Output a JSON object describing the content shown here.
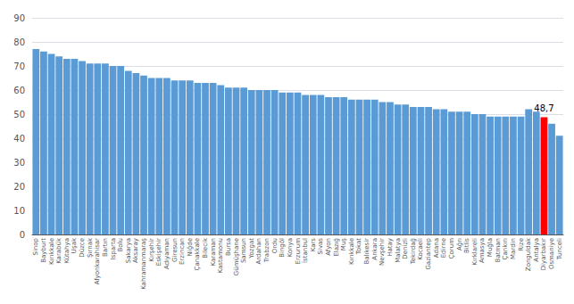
{
  "chart_data": {
    "type": "bar",
    "categories": [
      "Sinop",
      "Bayburt",
      "Kırıkkale",
      "Karabük",
      "Kütahya",
      "Uşak",
      "Düzce",
      "Şırnak",
      "Afyonkarahisar",
      "Bartın",
      "Isparta",
      "Bolu",
      "Sakarya",
      "Aksaray",
      "Kahramanmaraş",
      "Kırşehir",
      "Eskişehir",
      "Adıyaman",
      "Giresun",
      "Erzincan",
      "Niğde",
      "Çanakkale",
      "Bilecik",
      "Karaman",
      "Kastamonu",
      "Bursa",
      "Gümüşhane",
      "Samsun",
      "Yozgat",
      "Ardahan",
      "Trabzon",
      "Ordu",
      "Bingöl",
      "Konya",
      "Erzurum",
      "İstanbul",
      "Kars",
      "Sivas",
      "Afyon",
      "Elazığ",
      "Muş",
      "Kırıkkale",
      "Tokat",
      "Balıkesir",
      "Ankara",
      "Nevşehir",
      "Hatay",
      "Malatya",
      "Denizli",
      "Tekirdağ",
      "Kocaeli",
      "Gaziantep",
      "Adana",
      "Edirne",
      "Çorum",
      "Ağrı",
      "Bitlis",
      "Kırklareli",
      "Amasya",
      "Muğla",
      "Batman",
      "Çankırı",
      "Mardin",
      "Rize",
      "Zonguldak",
      "Antalya",
      "Diyarbakır",
      "Osmaniye",
      "Tunceli"
    ],
    "values": [
      77,
      76,
      75,
      74,
      73,
      73,
      72,
      71,
      71,
      71,
      70,
      70,
      68,
      67,
      66,
      65,
      65,
      65,
      64,
      64,
      64,
      63,
      63,
      63,
      62,
      61,
      61,
      61,
      60,
      60,
      60,
      60,
      59,
      59,
      59,
      58,
      58,
      58,
      57,
      57,
      57,
      56,
      56,
      56,
      56,
      55,
      55,
      54,
      54,
      53,
      53,
      53,
      52,
      52,
      51,
      51,
      51,
      50,
      50,
      49,
      49,
      49,
      49,
      49,
      52,
      51,
      48.7,
      46,
      41
    ],
    "colors": [
      "#5B9BD5",
      "#5B9BD5",
      "#5B9BD5",
      "#5B9BD5",
      "#5B9BD5",
      "#5B9BD5",
      "#5B9BD5",
      "#5B9BD5",
      "#5B9BD5",
      "#5B9BD5",
      "#5B9BD5",
      "#5B9BD5",
      "#5B9BD5",
      "#5B9BD5",
      "#5B9BD5",
      "#5B9BD5",
      "#5B9BD5",
      "#5B9BD5",
      "#5B9BD5",
      "#5B9BD5",
      "#5B9BD5",
      "#5B9BD5",
      "#5B9BD5",
      "#5B9BD5",
      "#5B9BD5",
      "#5B9BD5",
      "#5B9BD5",
      "#5B9BD5",
      "#5B9BD5",
      "#5B9BD5",
      "#5B9BD5",
      "#5B9BD5",
      "#5B9BD5",
      "#5B9BD5",
      "#5B9BD5",
      "#5B9BD5",
      "#5B9BD5",
      "#5B9BD5",
      "#5B9BD5",
      "#5B9BD5",
      "#5B9BD5",
      "#5B9BD5",
      "#5B9BD5",
      "#5B9BD5",
      "#5B9BD5",
      "#5B9BD5",
      "#5B9BD5",
      "#5B9BD5",
      "#5B9BD5",
      "#5B9BD5",
      "#5B9BD5",
      "#5B9BD5",
      "#5B9BD5",
      "#5B9BD5",
      "#5B9BD5",
      "#5B9BD5",
      "#5B9BD5",
      "#5B9BD5",
      "#5B9BD5",
      "#5B9BD5",
      "#5B9BD5",
      "#5B9BD5",
      "#5B9BD5",
      "#5B9BD5",
      "#5B9BD5",
      "#5B9BD5",
      "#FF0000",
      "#5B9BD5",
      "#5B9BD5"
    ],
    "annotations": [
      {
        "text": "48,7",
        "x": "Diyarbakır"
      }
    ],
    "ylim": [
      0,
      90
    ],
    "yticks": [
      0,
      10,
      20,
      30,
      40,
      50,
      60,
      70,
      80,
      90
    ],
    "grid": true
  }
}
